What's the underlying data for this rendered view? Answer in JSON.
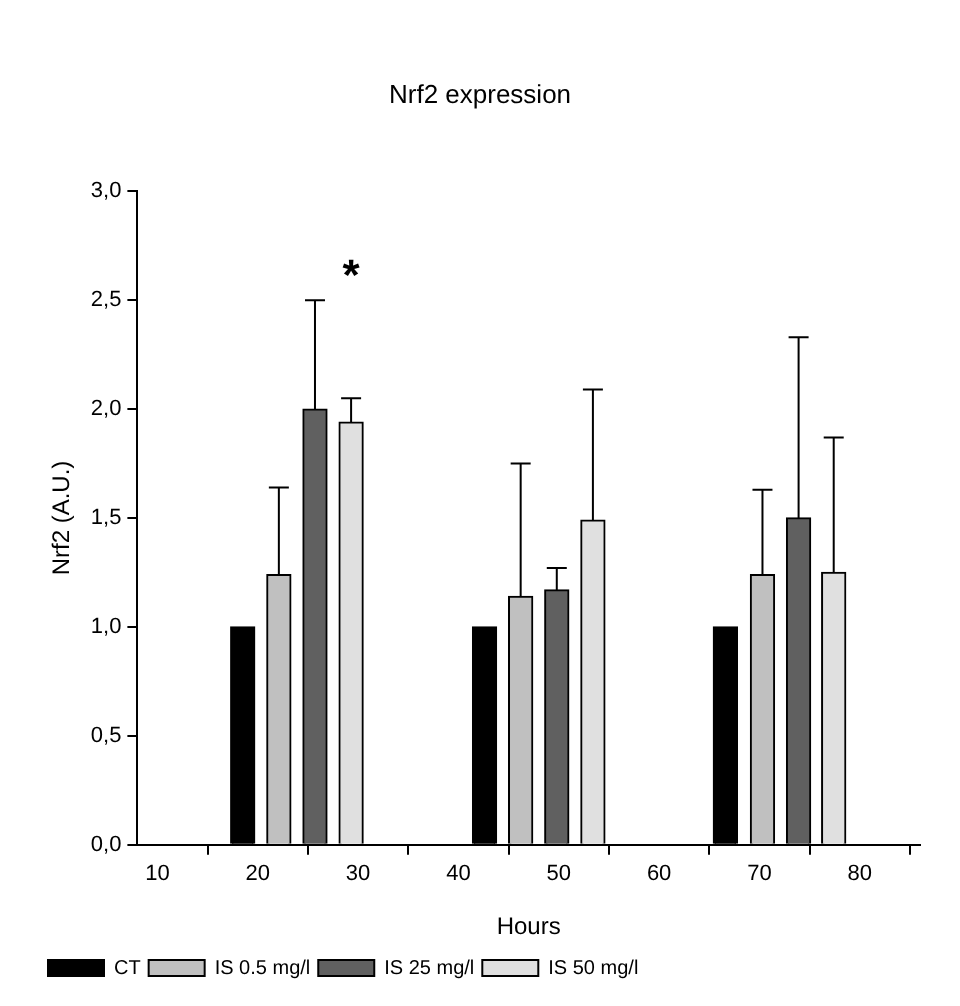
{
  "chart_data": {
    "type": "bar",
    "title": "Nrf2 expression",
    "xlabel": "Hours",
    "ylabel": "Nrf2 (A.U.)",
    "series": [
      {
        "name": "CT",
        "color": "#000000",
        "x": [
          18.5,
          42.6,
          66.6
        ],
        "values": [
          1.0,
          1.0,
          1.0
        ]
      },
      {
        "name": "IS 0.5 mg/l",
        "color": "#c0c0c0",
        "x": [
          22.1,
          46.2,
          70.3
        ],
        "values": [
          1.24,
          1.14,
          1.24
        ],
        "errors": [
          [
            1.24,
            1.64
          ],
          [
            1.14,
            1.75
          ],
          [
            1.24,
            1.63
          ]
        ]
      },
      {
        "name": "IS 25 mg/l",
        "color": "#606060",
        "x": [
          25.7,
          49.8,
          73.9
        ],
        "values": [
          2.0,
          1.17,
          1.5
        ],
        "errors": [
          [
            2.0,
            2.5
          ],
          [
            1.17,
            1.27
          ],
          [
            1.5,
            2.33
          ]
        ]
      },
      {
        "name": "IS 50 mg/l",
        "color": "#e0e0e0",
        "x": [
          29.3,
          53.4,
          77.4
        ],
        "values": [
          1.94,
          1.49,
          1.25
        ],
        "errors": [
          [
            1.94,
            2.05
          ],
          [
            1.49,
            2.09
          ],
          [
            1.25,
            1.87
          ]
        ]
      }
    ],
    "xlim": [
      8,
      86
    ],
    "xticks": [
      10,
      20,
      30,
      40,
      50,
      60,
      70,
      80
    ],
    "ylim": [
      0,
      3
    ],
    "yticks": [
      {
        "value": 0,
        "label": "0,0"
      },
      {
        "value": 0.5,
        "label": "0,5"
      },
      {
        "value": 1,
        "label": "1,0"
      },
      {
        "value": 1.5,
        "label": "1,5"
      },
      {
        "value": 2,
        "label": "2,0"
      },
      {
        "value": 2.5,
        "label": "2,5"
      },
      {
        "value": 3,
        "label": "3,0"
      }
    ],
    "annotations": [
      {
        "text": "*",
        "x": 29.3,
        "y": 2.05
      }
    ],
    "grid": false,
    "legend": "bottom left"
  }
}
